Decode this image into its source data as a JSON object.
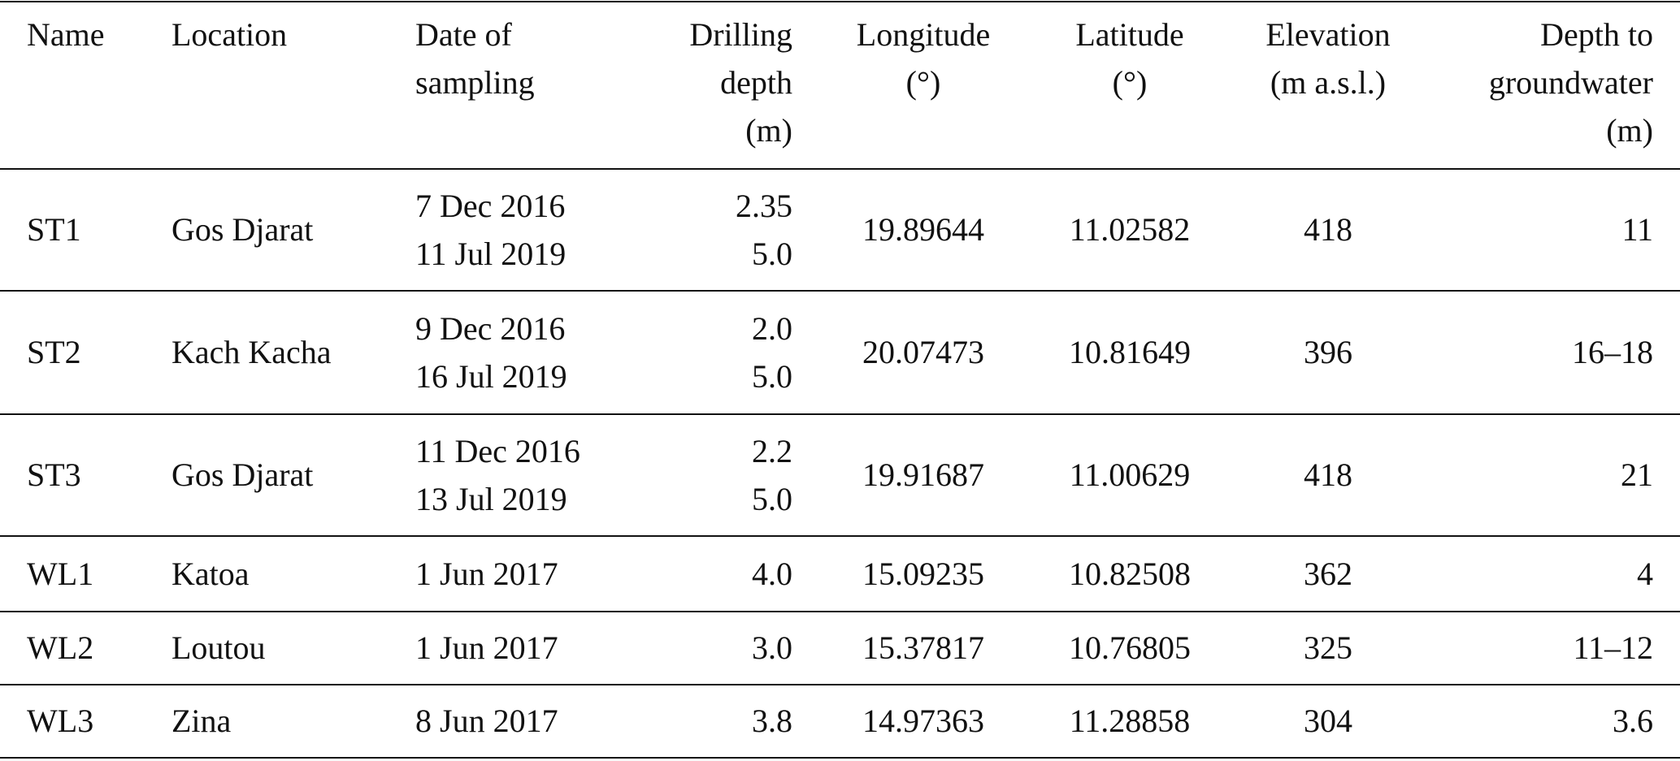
{
  "table": {
    "columns": [
      [
        "Name"
      ],
      [
        "Location"
      ],
      [
        "Date of",
        "sampling"
      ],
      [
        "Drilling",
        "depth",
        "(m)"
      ],
      [
        "Longitude",
        "(°)"
      ],
      [
        "Latitude",
        "(°)"
      ],
      [
        "Elevation",
        "(m a.s.l.)"
      ],
      [
        "Depth to",
        "groundwater",
        "(m)"
      ]
    ],
    "rows": [
      [
        "ST1",
        "Gos Djarat",
        [
          "7 Dec 2016",
          "11 Jul 2019"
        ],
        [
          "2.35",
          "5.0"
        ],
        "19.89644",
        "11.02582",
        "418",
        "11"
      ],
      [
        "ST2",
        "Kach Kacha",
        [
          "9 Dec 2016",
          "16 Jul 2019"
        ],
        [
          "2.0",
          "5.0"
        ],
        "20.07473",
        "10.81649",
        "396",
        "16–18"
      ],
      [
        "ST3",
        "Gos Djarat",
        [
          "11 Dec 2016",
          "13 Jul 2019"
        ],
        [
          "2.2",
          "5.0"
        ],
        "19.91687",
        "11.00629",
        "418",
        "21"
      ],
      [
        "WL1",
        "Katoa",
        "1 Jun 2017",
        "4.0",
        "15.09235",
        "10.82508",
        "362",
        "4"
      ],
      [
        "WL2",
        "Loutou",
        "1 Jun 2017",
        "3.0",
        "15.37817",
        "10.76805",
        "325",
        "11–12"
      ],
      [
        "WL3",
        "Zina",
        "8 Jun 2017",
        "3.8",
        "14.97363",
        "11.28858",
        "304",
        "3.6"
      ]
    ]
  }
}
